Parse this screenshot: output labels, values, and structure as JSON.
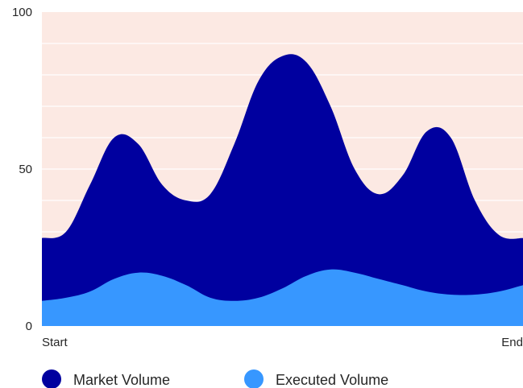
{
  "chart_data": {
    "type": "area",
    "x": [
      0,
      1,
      2,
      3,
      4,
      5,
      6,
      7,
      8,
      9,
      10,
      11,
      12,
      13,
      14,
      15,
      16,
      17,
      18,
      19,
      20
    ],
    "x_tick_labels": [
      "Start",
      "End"
    ],
    "y_ticks": [
      0,
      50,
      100
    ],
    "ylim": [
      0,
      100
    ],
    "grid": true,
    "legend_position": "bottom-left",
    "stacked": false,
    "series": [
      {
        "name": "Market Volume",
        "color": "#00009f",
        "values": [
          28,
          30,
          45,
          60,
          58,
          45,
          40,
          42,
          58,
          78,
          86,
          84,
          70,
          50,
          42,
          48,
          62,
          60,
          40,
          29,
          28
        ]
      },
      {
        "name": "Executed Volume",
        "color": "#3797ff",
        "values": [
          8,
          9,
          11,
          15,
          17,
          16,
          13,
          9,
          8,
          9,
          12,
          16,
          18,
          17,
          15,
          13,
          11,
          10,
          10,
          11,
          13
        ]
      }
    ],
    "background_color": "#fce9e3"
  }
}
